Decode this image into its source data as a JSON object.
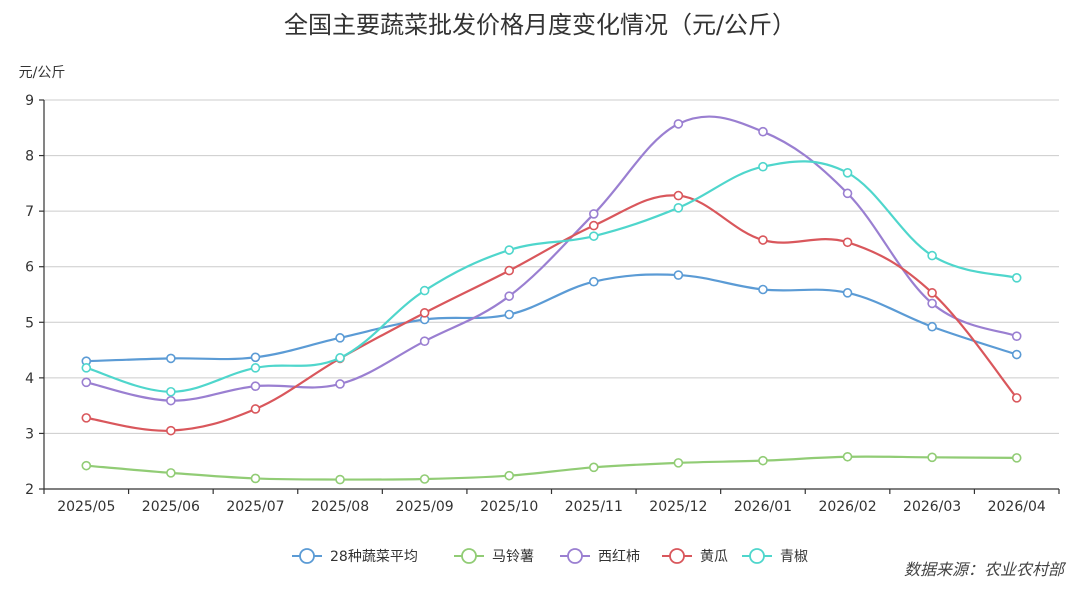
{
  "chart_data": {
    "type": "line",
    "title": "全国主要蔬菜批发价格月度变化情况（元/公斤）",
    "ylabel": "元/公斤",
    "xlabel": "",
    "ylim": [
      2,
      9
    ],
    "yticks": [
      "2",
      "3",
      "4",
      "5",
      "6",
      "7",
      "8",
      "9"
    ],
    "grid": true,
    "legend_position": "bottom",
    "categories": [
      "2025/05",
      "2025/06",
      "2025/07",
      "2025/08",
      "2025/09",
      "2025/10",
      "2025/11",
      "2025/12",
      "2026/01",
      "2026/02",
      "2026/03",
      "2026/04"
    ],
    "series": [
      {
        "name": "28种蔬菜平均",
        "color": "#5b9bd5",
        "values": [
          4.3,
          4.35,
          4.37,
          4.72,
          5.05,
          5.14,
          5.73,
          5.85,
          5.59,
          5.53,
          4.92,
          4.42
        ]
      },
      {
        "name": "马铃薯",
        "color": "#91cc75",
        "values": [
          2.42,
          2.29,
          2.19,
          2.17,
          2.18,
          2.24,
          2.39,
          2.47,
          2.51,
          2.58,
          2.57,
          2.56
        ]
      },
      {
        "name": "西红柿",
        "color": "#9a7fd1",
        "values": [
          3.92,
          3.59,
          3.85,
          3.89,
          4.66,
          5.47,
          6.95,
          8.57,
          8.43,
          7.32,
          5.34,
          4.75
        ]
      },
      {
        "name": "黄瓜",
        "color": "#d9575c",
        "values": [
          3.28,
          3.05,
          3.44,
          4.35,
          5.17,
          5.93,
          6.74,
          7.28,
          6.48,
          6.44,
          5.53,
          3.64
        ]
      },
      {
        "name": "青椒",
        "color": "#4fd6cc",
        "values": [
          4.18,
          3.75,
          4.18,
          4.36,
          5.57,
          6.3,
          6.55,
          7.06,
          7.8,
          7.69,
          6.2,
          5.8
        ]
      }
    ]
  },
  "source_label": "数据来源：农业农村部"
}
